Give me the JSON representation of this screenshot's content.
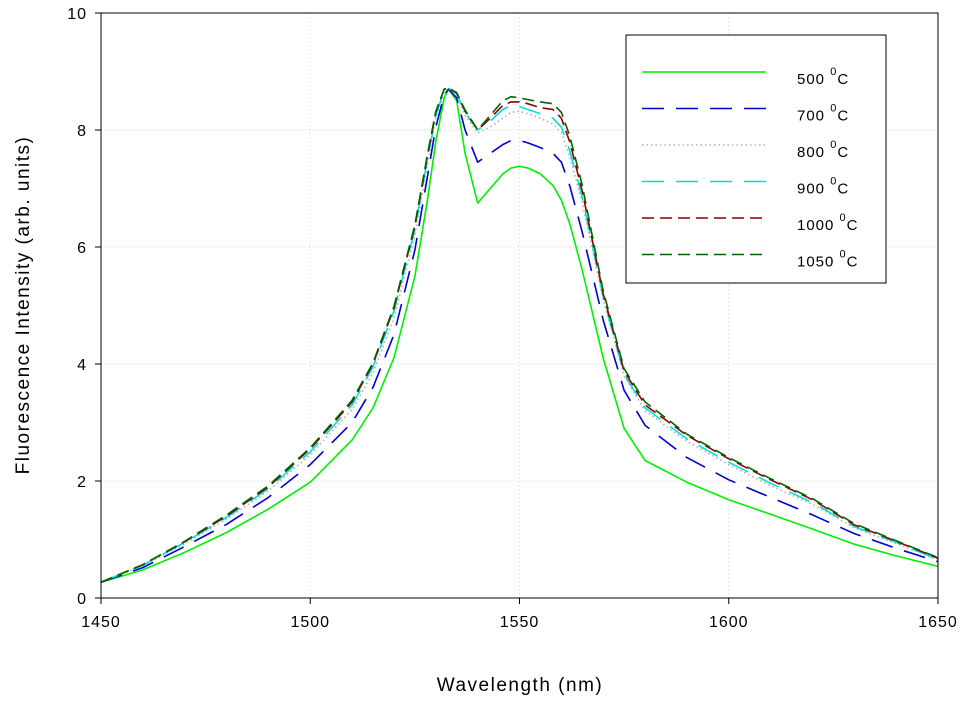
{
  "chart_data": {
    "type": "line",
    "title": "",
    "xlabel": "Wavelength (nm)",
    "ylabel": "Fluorescence Intensity (arb. units)",
    "xlim": [
      1450,
      1650
    ],
    "ylim": [
      0,
      10
    ],
    "xticks": [
      1450,
      1500,
      1550,
      1600,
      1650
    ],
    "yticks": [
      0,
      2,
      4,
      6,
      8,
      10
    ],
    "grid": true,
    "legend_position": "top-right",
    "x": [
      1450,
      1460,
      1470,
      1480,
      1490,
      1500,
      1510,
      1515,
      1520,
      1525,
      1528,
      1530,
      1532,
      1533,
      1535,
      1537,
      1540,
      1543,
      1546,
      1548,
      1550,
      1552,
      1555,
      1558,
      1560,
      1562,
      1565,
      1570,
      1575,
      1580,
      1590,
      1600,
      1610,
      1620,
      1630,
      1640,
      1650
    ],
    "series": [
      {
        "name": "500",
        "unit": "0C",
        "color": "#00ee00",
        "dash": "solid",
        "values": [
          0.27,
          0.48,
          0.78,
          1.12,
          1.52,
          1.98,
          2.7,
          3.25,
          4.1,
          5.5,
          6.8,
          7.8,
          8.55,
          8.7,
          8.5,
          7.6,
          6.75,
          7.0,
          7.25,
          7.35,
          7.38,
          7.35,
          7.25,
          7.05,
          6.8,
          6.4,
          5.6,
          4.1,
          2.9,
          2.35,
          1.98,
          1.68,
          1.43,
          1.18,
          0.92,
          0.72,
          0.54
        ]
      },
      {
        "name": "700",
        "unit": "0C",
        "color": "#0000cc",
        "dash": "longdash",
        "values": [
          0.27,
          0.52,
          0.88,
          1.26,
          1.72,
          2.28,
          3.0,
          3.6,
          4.5,
          5.95,
          7.2,
          8.05,
          8.6,
          8.7,
          8.55,
          8.0,
          7.45,
          7.6,
          7.75,
          7.82,
          7.82,
          7.78,
          7.7,
          7.6,
          7.45,
          7.05,
          6.25,
          4.75,
          3.55,
          2.95,
          2.4,
          2.02,
          1.72,
          1.42,
          1.1,
          0.85,
          0.62
        ]
      },
      {
        "name": "800",
        "unit": "0C",
        "color": "#b0b0b0",
        "dash": "dotted",
        "values": [
          0.27,
          0.55,
          0.93,
          1.35,
          1.83,
          2.45,
          3.22,
          3.85,
          4.78,
          6.2,
          7.4,
          8.2,
          8.65,
          8.72,
          8.6,
          8.25,
          7.95,
          8.05,
          8.2,
          8.3,
          8.32,
          8.28,
          8.2,
          8.1,
          7.95,
          7.55,
          6.75,
          5.1,
          3.8,
          3.2,
          2.68,
          2.28,
          1.92,
          1.6,
          1.2,
          0.93,
          0.65
        ]
      },
      {
        "name": "900",
        "unit": "0C",
        "color": "#00dddd",
        "dash": "longdash",
        "values": [
          0.27,
          0.56,
          0.95,
          1.38,
          1.87,
          2.5,
          3.3,
          3.95,
          4.9,
          6.3,
          7.5,
          8.25,
          8.68,
          8.72,
          8.62,
          8.3,
          8.0,
          8.15,
          8.35,
          8.42,
          8.4,
          8.35,
          8.28,
          8.2,
          8.05,
          7.65,
          6.85,
          5.15,
          3.82,
          3.25,
          2.72,
          2.32,
          1.96,
          1.63,
          1.22,
          0.95,
          0.66
        ]
      },
      {
        "name": "1000",
        "unit": "0C",
        "color": "#8b0000",
        "dash": "dashed",
        "values": [
          0.27,
          0.57,
          0.96,
          1.4,
          1.9,
          2.55,
          3.35,
          4.0,
          4.95,
          6.35,
          7.55,
          8.3,
          8.7,
          8.72,
          8.63,
          8.32,
          8.0,
          8.2,
          8.42,
          8.48,
          8.48,
          8.45,
          8.38,
          8.35,
          8.2,
          7.8,
          6.95,
          5.2,
          3.88,
          3.3,
          2.78,
          2.38,
          2.02,
          1.68,
          1.25,
          0.97,
          0.68
        ]
      },
      {
        "name": "1050",
        "unit": "0C",
        "color": "#006400",
        "dash": "dashed",
        "values": [
          0.27,
          0.57,
          0.97,
          1.42,
          1.92,
          2.57,
          3.38,
          4.02,
          4.98,
          6.38,
          7.58,
          8.32,
          8.7,
          8.72,
          8.64,
          8.34,
          8.0,
          8.25,
          8.5,
          8.57,
          8.55,
          8.52,
          8.48,
          8.45,
          8.3,
          7.9,
          7.05,
          5.25,
          3.92,
          3.35,
          2.8,
          2.4,
          2.04,
          1.7,
          1.27,
          0.98,
          0.69
        ]
      }
    ]
  }
}
